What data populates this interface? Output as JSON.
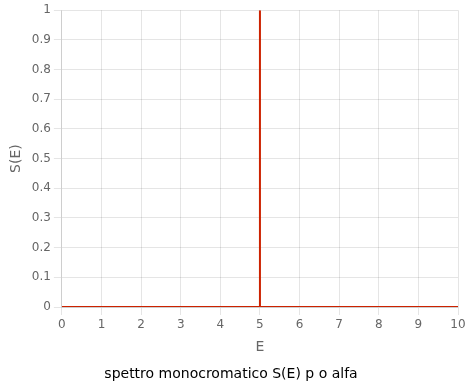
{
  "chart_data": {
    "type": "line",
    "title": "spettro monocromatico S(E) p o alfa",
    "xlabel": "E",
    "ylabel": "S(E)",
    "series": [
      {
        "x": [
          5,
          5
        ],
        "values": [
          0,
          1
        ],
        "color": "#cc2200"
      },
      {
        "x": [
          0,
          10
        ],
        "values": [
          0,
          0
        ],
        "color": "#cc2200"
      }
    ],
    "xlim": [
      0,
      10
    ],
    "ylim": [
      0,
      1
    ],
    "xticks": [
      0,
      1,
      2,
      3,
      4,
      5,
      6,
      7,
      8,
      9,
      10
    ],
    "yticks": [
      0,
      0.1,
      0.2,
      0.3,
      0.4,
      0.5,
      0.6,
      0.7,
      0.8,
      0.9,
      1
    ],
    "grid": true
  }
}
